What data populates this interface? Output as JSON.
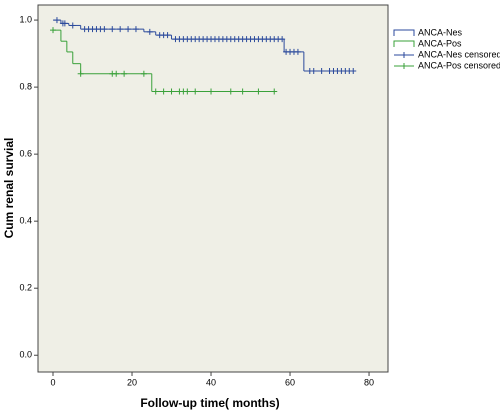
{
  "chart_data": {
    "type": "step",
    "xlabel": "Follow-up time( months)",
    "ylabel": "Cum renal survial",
    "xlim": [
      -3.8,
      84.8
    ],
    "ylim": [
      -0.05,
      1.045
    ],
    "xticks": [
      0,
      20,
      40,
      60,
      80
    ],
    "yticks": [
      {
        "value": 0,
        "label": "0.0"
      },
      {
        "value": 0.2,
        "label": "0.2"
      },
      {
        "value": 0.4,
        "label": "0.4"
      },
      {
        "value": 0.6,
        "label": "0.6"
      },
      {
        "value": 0.8,
        "label": "0.8"
      },
      {
        "value": 1,
        "label": "1.0"
      }
    ],
    "legend": "outside-right",
    "series": [
      {
        "name": "ANCA-Nes",
        "color": "#2b4a9c",
        "x": [
          0,
          2,
          4,
          7,
          23,
          26,
          30,
          58.5,
          63.5,
          76
        ],
        "values": [
          1.0,
          0.99,
          0.984,
          0.973,
          0.965,
          0.955,
          0.943,
          0.905,
          0.848,
          0.848
        ]
      },
      {
        "name": "ANCA-Pos",
        "color": "#3aa13a",
        "x": [
          0,
          2,
          3.5,
          5,
          7,
          25,
          56
        ],
        "values": [
          0.97,
          0.937,
          0.905,
          0.87,
          0.84,
          0.787,
          0.787
        ]
      },
      {
        "name": "ANCA-Nes censored",
        "color": "#2b4a9c",
        "marker": "+",
        "x": [
          1,
          2.5,
          3,
          5,
          8,
          9,
          10,
          11,
          12,
          13,
          15,
          17,
          19,
          21,
          24.5,
          27,
          28,
          29,
          31,
          32,
          33,
          34,
          35,
          36,
          37,
          38,
          39,
          40,
          41,
          42,
          43,
          44,
          45,
          46,
          47,
          48,
          49,
          50,
          51,
          52,
          53,
          54,
          55,
          56,
          57,
          58,
          59,
          60,
          61,
          62,
          65,
          66,
          68,
          70,
          71,
          72,
          73,
          74,
          75,
          76
        ],
        "values": [
          1.0,
          0.99,
          0.99,
          0.984,
          0.973,
          0.973,
          0.973,
          0.973,
          0.973,
          0.973,
          0.973,
          0.973,
          0.973,
          0.973,
          0.965,
          0.955,
          0.955,
          0.955,
          0.943,
          0.943,
          0.943,
          0.943,
          0.943,
          0.943,
          0.943,
          0.943,
          0.943,
          0.943,
          0.943,
          0.943,
          0.943,
          0.943,
          0.943,
          0.943,
          0.943,
          0.943,
          0.943,
          0.943,
          0.943,
          0.943,
          0.943,
          0.943,
          0.943,
          0.943,
          0.943,
          0.943,
          0.905,
          0.905,
          0.905,
          0.905,
          0.848,
          0.848,
          0.848,
          0.848,
          0.848,
          0.848,
          0.848,
          0.848,
          0.848,
          0.848
        ]
      },
      {
        "name": "ANCA-Pos censored",
        "color": "#3aa13a",
        "marker": "+",
        "x": [
          0,
          7,
          15,
          16,
          18,
          23,
          26,
          28,
          30,
          32,
          33,
          34,
          36,
          40,
          45,
          48,
          52,
          56
        ],
        "values": [
          0.97,
          0.84,
          0.84,
          0.84,
          0.84,
          0.84,
          0.787,
          0.787,
          0.787,
          0.787,
          0.787,
          0.787,
          0.787,
          0.787,
          0.787,
          0.787,
          0.787,
          0.787
        ]
      }
    ]
  }
}
